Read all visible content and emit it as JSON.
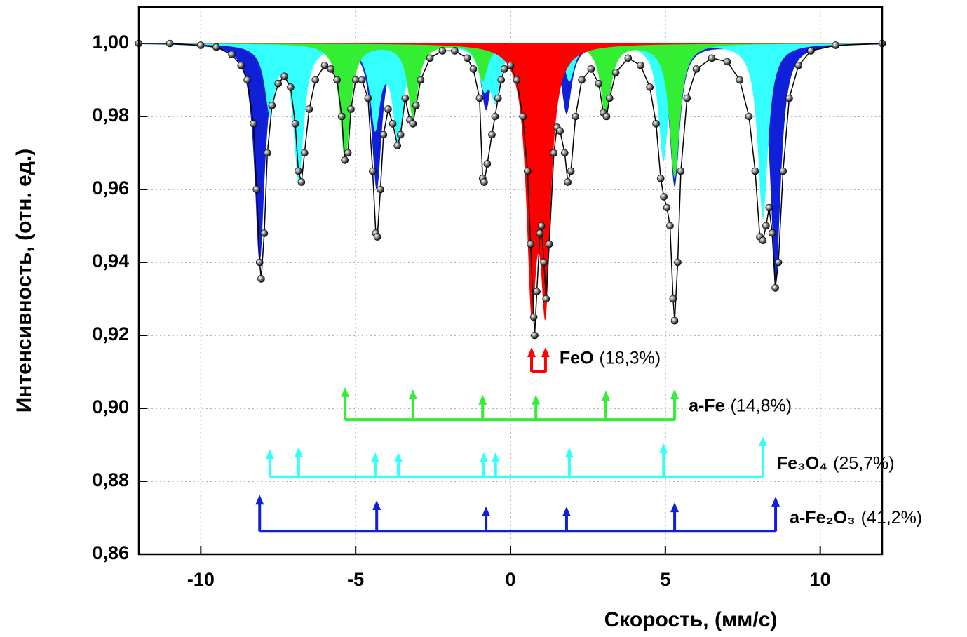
{
  "chart_data": {
    "type": "mossbauer",
    "xlabel": "Скорость, (мм/с)",
    "ylabel": "Интенсивность, (отн. ед.)",
    "xlim": [
      -12,
      12
    ],
    "ylim": [
      0.86,
      1.01
    ],
    "xticks": [
      -10,
      -5,
      0,
      5,
      10
    ],
    "yticks": [
      {
        "value": 0.86,
        "label": "0,86"
      },
      {
        "value": 0.88,
        "label": "0,88"
      },
      {
        "value": 0.9,
        "label": "0,90"
      },
      {
        "value": 0.92,
        "label": "0,92"
      },
      {
        "value": 0.94,
        "label": "0,94"
      },
      {
        "value": 0.96,
        "label": "0,96"
      },
      {
        "value": 0.98,
        "label": "0,98"
      },
      {
        "value": 1.0,
        "label": "1,00"
      }
    ],
    "grid": true,
    "point_color": "#000000",
    "x": [
      -12,
      -11,
      -10,
      -9.5,
      -9,
      -8.7,
      -8.5,
      -8.3,
      -8.2,
      -8.1,
      -8.05,
      -7.95,
      -7.85,
      -7.7,
      -7.5,
      -7.3,
      -7.1,
      -6.95,
      -6.85,
      -6.75,
      -6.65,
      -6.5,
      -6.3,
      -6.0,
      -5.8,
      -5.6,
      -5.45,
      -5.35,
      -5.25,
      -5.15,
      -5.0,
      -4.8,
      -4.6,
      -4.45,
      -4.35,
      -4.3,
      -4.2,
      -4.1,
      -3.95,
      -3.8,
      -3.65,
      -3.55,
      -3.4,
      -3.25,
      -3.15,
      -3.05,
      -2.9,
      -2.6,
      -2.2,
      -1.8,
      -1.4,
      -1.2,
      -1.0,
      -0.9,
      -0.85,
      -0.75,
      -0.6,
      -0.5,
      -0.4,
      -0.3,
      -0.2,
      0,
      0.2,
      0.4,
      0.55,
      0.65,
      0.75,
      0.78,
      0.85,
      0.95,
      1.0,
      1.08,
      1.15,
      1.25,
      1.4,
      1.5,
      1.6,
      1.75,
      1.85,
      1.95,
      2.1,
      2.3,
      2.6,
      2.85,
      3.0,
      3.1,
      3.2,
      3.4,
      3.8,
      4.2,
      4.5,
      4.7,
      4.85,
      4.95,
      5.05,
      5.15,
      5.25,
      5.3,
      5.4,
      5.5,
      5.7,
      6.0,
      6.5,
      7.0,
      7.4,
      7.7,
      7.9,
      8.05,
      8.15,
      8.25,
      8.35,
      8.45,
      8.55,
      8.65,
      8.8,
      9.0,
      9.3,
      9.7,
      10.5,
      12
    ],
    "values": [
      1.0,
      1.0,
      0.9995,
      0.999,
      0.997,
      0.994,
      0.99,
      0.978,
      0.96,
      0.94,
      0.9355,
      0.948,
      0.97,
      0.983,
      0.989,
      0.991,
      0.988,
      0.978,
      0.965,
      0.962,
      0.97,
      0.982,
      0.99,
      0.994,
      0.993,
      0.99,
      0.98,
      0.968,
      0.97,
      0.982,
      0.99,
      0.99,
      0.985,
      0.965,
      0.948,
      0.947,
      0.96,
      0.975,
      0.982,
      0.978,
      0.972,
      0.975,
      0.985,
      0.979,
      0.978,
      0.983,
      0.99,
      0.996,
      0.998,
      0.998,
      0.996,
      0.993,
      0.985,
      0.963,
      0.962,
      0.967,
      0.975,
      0.98,
      0.985,
      0.99,
      0.993,
      0.994,
      0.99,
      0.98,
      0.965,
      0.945,
      0.925,
      0.92,
      0.932,
      0.948,
      0.95,
      0.94,
      0.93,
      0.945,
      0.97,
      0.977,
      0.976,
      0.97,
      0.962,
      0.965,
      0.98,
      0.99,
      0.993,
      0.989,
      0.981,
      0.98,
      0.985,
      0.992,
      0.996,
      0.994,
      0.988,
      0.978,
      0.963,
      0.958,
      0.955,
      0.95,
      0.93,
      0.924,
      0.94,
      0.965,
      0.985,
      0.993,
      0.996,
      0.995,
      0.99,
      0.98,
      0.965,
      0.947,
      0.946,
      0.95,
      0.955,
      0.948,
      0.933,
      0.94,
      0.965,
      0.985,
      0.994,
      0.998,
      0.9995,
      1.0
    ],
    "components": [
      {
        "name": "a-Fe₂O₃",
        "share": "(41,2%)",
        "color": "#1020d8",
        "positions": [
          -8.1,
          -4.32,
          -0.79,
          1.81,
          5.3,
          8.56
        ],
        "depths": [
          0.94,
          0.96,
          0.982,
          0.981,
          0.961,
          0.935
        ],
        "marker_base": 0.8663,
        "marker_tops": [
          0.8763,
          0.8748,
          0.8731,
          0.8731,
          0.8742,
          0.8758
        ]
      },
      {
        "name": "Fe₃O₄",
        "share": "(25,7%)",
        "color": "#33ffff",
        "positions": [
          -7.77,
          -6.84,
          -4.37,
          -3.62,
          -0.86,
          -0.48,
          1.9,
          4.94,
          8.15
        ],
        "depths": [
          0.982,
          0.963,
          0.978,
          0.973,
          0.99,
          0.986,
          0.99,
          0.968,
          0.952
        ],
        "marker_base": 0.8812,
        "marker_tops": [
          0.8888,
          0.8894,
          0.8879,
          0.8879,
          0.8879,
          0.8879,
          0.8892,
          0.8904,
          0.8923
        ]
      },
      {
        "name": "a-Fe",
        "share": "(14,8%)",
        "color": "#33ee33",
        "positions": [
          -5.34,
          -3.15,
          -0.9,
          0.82,
          3.08,
          5.3
        ],
        "depths": [
          0.968,
          0.98,
          0.99,
          0.99,
          0.98,
          0.963
        ],
        "marker_base": 0.8969,
        "marker_tops": [
          0.9058,
          0.9052,
          0.9037,
          0.9037,
          0.9048,
          0.9052
        ]
      },
      {
        "name": "FeO",
        "share": "(18,3%)",
        "color": "#ff0000",
        "positions": [
          0.68,
          1.13
        ],
        "depths": [
          0.935,
          0.935
        ],
        "marker_base": 0.91,
        "marker_tops": [
          0.9167,
          0.9167
        ]
      }
    ]
  }
}
